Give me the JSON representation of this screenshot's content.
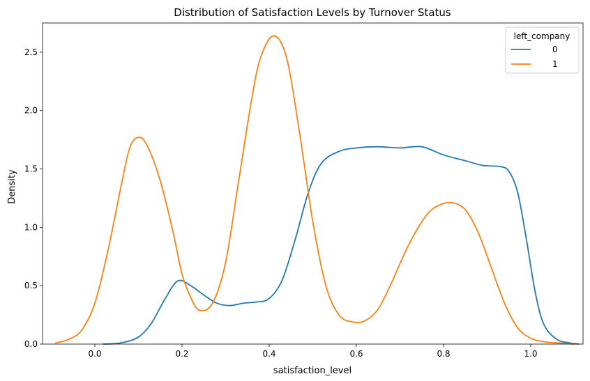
{
  "chart_data": {
    "type": "line",
    "title": "Distribution of Satisfaction Levels by Turnover Status",
    "xlabel": "satisfaction_level",
    "ylabel": "Density",
    "xlim": [
      -0.12,
      1.12
    ],
    "ylim": [
      0,
      2.75
    ],
    "xticks": [
      0.0,
      0.2,
      0.4,
      0.6,
      0.8,
      1.0
    ],
    "xtick_labels": [
      "0.0",
      "0.2",
      "0.4",
      "0.6",
      "0.8",
      "1.0"
    ],
    "yticks": [
      0.0,
      0.5,
      1.0,
      1.5,
      2.0,
      2.5
    ],
    "ytick_labels": [
      "0.0",
      "0.5",
      "1.0",
      "1.5",
      "2.0",
      "2.5"
    ],
    "grid": false,
    "legend": {
      "title": "left_company",
      "placement": "top-right"
    },
    "series": [
      {
        "name": "0",
        "color": "#1f77b4",
        "points": [
          [
            0.02,
            0.0
          ],
          [
            0.06,
            0.01
          ],
          [
            0.1,
            0.06
          ],
          [
            0.13,
            0.18
          ],
          [
            0.16,
            0.38
          ],
          [
            0.19,
            0.54
          ],
          [
            0.22,
            0.5
          ],
          [
            0.25,
            0.42
          ],
          [
            0.28,
            0.35
          ],
          [
            0.31,
            0.33
          ],
          [
            0.34,
            0.35
          ],
          [
            0.37,
            0.36
          ],
          [
            0.4,
            0.39
          ],
          [
            0.43,
            0.55
          ],
          [
            0.46,
            0.9
          ],
          [
            0.49,
            1.3
          ],
          [
            0.52,
            1.55
          ],
          [
            0.56,
            1.65
          ],
          [
            0.6,
            1.68
          ],
          [
            0.65,
            1.69
          ],
          [
            0.7,
            1.68
          ],
          [
            0.75,
            1.69
          ],
          [
            0.8,
            1.62
          ],
          [
            0.85,
            1.57
          ],
          [
            0.89,
            1.53
          ],
          [
            0.93,
            1.52
          ],
          [
            0.95,
            1.48
          ],
          [
            0.97,
            1.3
          ],
          [
            0.99,
            0.9
          ],
          [
            1.01,
            0.45
          ],
          [
            1.03,
            0.17
          ],
          [
            1.06,
            0.04
          ],
          [
            1.09,
            0.01
          ],
          [
            1.11,
            0.0
          ]
        ]
      },
      {
        "name": "1",
        "color": "#ff7f0e",
        "points": [
          [
            -0.09,
            0.01
          ],
          [
            -0.06,
            0.04
          ],
          [
            -0.03,
            0.12
          ],
          [
            0.0,
            0.35
          ],
          [
            0.03,
            0.8
          ],
          [
            0.06,
            1.35
          ],
          [
            0.08,
            1.68
          ],
          [
            0.1,
            1.77
          ],
          [
            0.12,
            1.7
          ],
          [
            0.15,
            1.4
          ],
          [
            0.18,
            0.95
          ],
          [
            0.2,
            0.6
          ],
          [
            0.22,
            0.4
          ],
          [
            0.24,
            0.29
          ],
          [
            0.27,
            0.35
          ],
          [
            0.3,
            0.7
          ],
          [
            0.33,
            1.4
          ],
          [
            0.36,
            2.1
          ],
          [
            0.38,
            2.45
          ],
          [
            0.41,
            2.64
          ],
          [
            0.44,
            2.45
          ],
          [
            0.47,
            1.8
          ],
          [
            0.5,
            1.05
          ],
          [
            0.53,
            0.5
          ],
          [
            0.56,
            0.25
          ],
          [
            0.59,
            0.19
          ],
          [
            0.62,
            0.2
          ],
          [
            0.65,
            0.3
          ],
          [
            0.68,
            0.52
          ],
          [
            0.72,
            0.85
          ],
          [
            0.76,
            1.1
          ],
          [
            0.79,
            1.19
          ],
          [
            0.82,
            1.21
          ],
          [
            0.85,
            1.15
          ],
          [
            0.88,
            0.95
          ],
          [
            0.91,
            0.65
          ],
          [
            0.94,
            0.35
          ],
          [
            0.97,
            0.14
          ],
          [
            1.0,
            0.05
          ],
          [
            1.03,
            0.02
          ],
          [
            1.06,
            0.01
          ],
          [
            1.1,
            0.0
          ]
        ]
      }
    ]
  }
}
